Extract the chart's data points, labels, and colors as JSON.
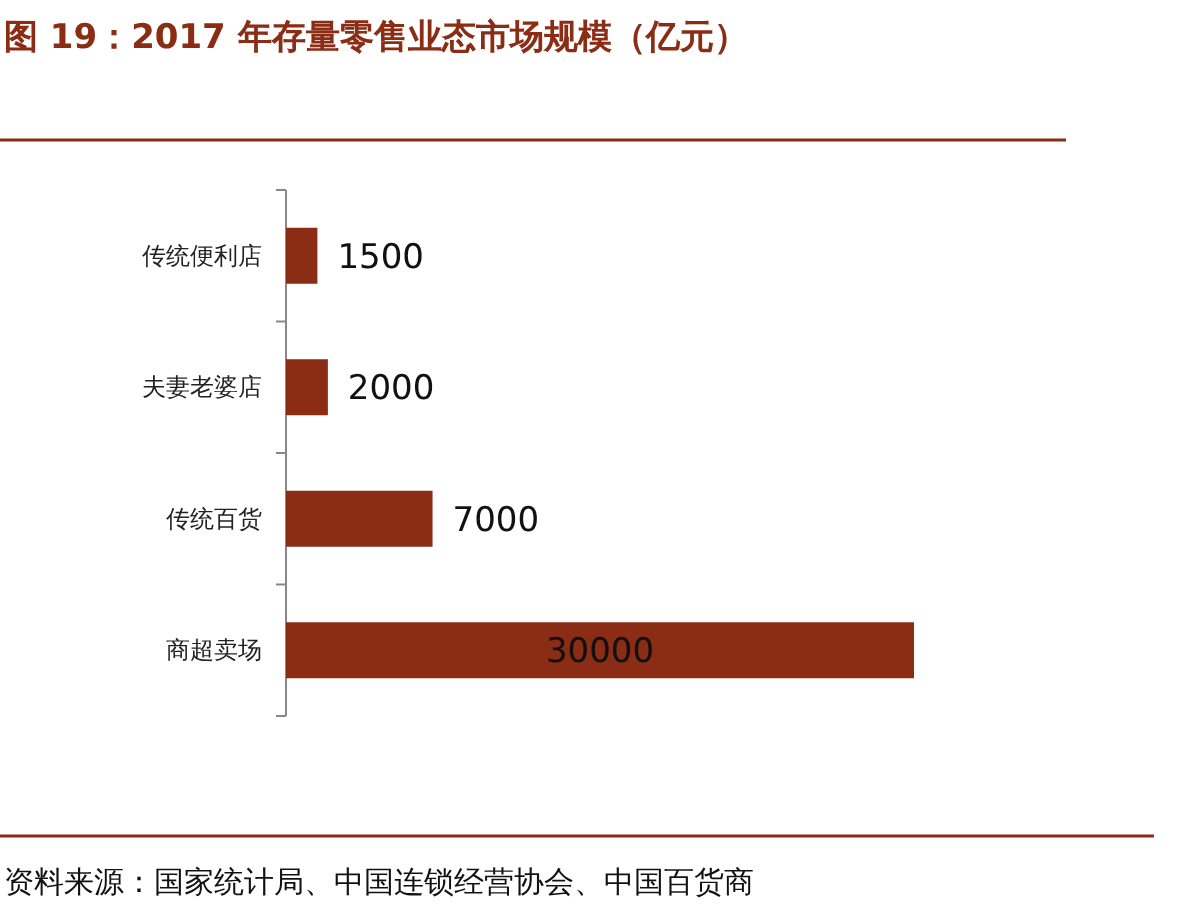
{
  "chart_data": {
    "type": "bar",
    "orientation": "horizontal",
    "title": "图 19：2017 年存量零售业态市场规模（亿元）",
    "categories": [
      "传统便利店",
      "夫妻老婆店",
      "传统百货",
      "商超卖场"
    ],
    "values": [
      1500,
      2000,
      7000,
      30000
    ],
    "color": "#8b2c14",
    "data_labels": true,
    "annotations": [
      "资料来源：国家统计局、中国连锁经营协会、中国百货商"
    ]
  }
}
